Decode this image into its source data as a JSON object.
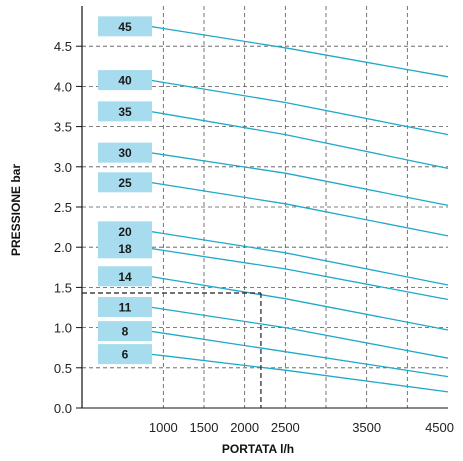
{
  "chart_data": {
    "type": "line",
    "title": "",
    "xlabel": "PORTATA l/h",
    "ylabel": "PRESSIONE bar",
    "xlim": [
      0,
      4500
    ],
    "ylim": [
      0,
      5.0
    ],
    "x_ticks": [
      "1000",
      "1500",
      "2000",
      "2500",
      "3500",
      "4500"
    ],
    "x_tick_values": [
      1000,
      1500,
      2000,
      2500,
      3500,
      4500
    ],
    "x_gridlines": [
      1000,
      1500,
      2000,
      2500,
      3000,
      3500,
      4000
    ],
    "y_ticks": [
      "0.0",
      "0.5",
      "1.0",
      "1.5",
      "2.0",
      "2.5",
      "3.0",
      "3.5",
      "4.0",
      "4.5"
    ],
    "y_tick_values": [
      0,
      0.5,
      1.0,
      1.5,
      2.0,
      2.5,
      3.0,
      3.5,
      4.0,
      4.5
    ],
    "grid": true,
    "series": [
      {
        "name": "45",
        "x": [
          1000,
          2500,
          4500
        ],
        "y": [
          4.72,
          4.48,
          4.12
        ]
      },
      {
        "name": "40",
        "x": [
          1000,
          2500,
          4500
        ],
        "y": [
          4.05,
          3.8,
          3.4
        ]
      },
      {
        "name": "35",
        "x": [
          1000,
          2500,
          4500
        ],
        "y": [
          3.66,
          3.4,
          2.98
        ]
      },
      {
        "name": "30",
        "x": [
          1000,
          2500,
          4500
        ],
        "y": [
          3.15,
          2.92,
          2.52
        ]
      },
      {
        "name": "25",
        "x": [
          1000,
          2500,
          4500
        ],
        "y": [
          2.78,
          2.54,
          2.14
        ]
      },
      {
        "name": "20",
        "x": [
          1000,
          2500,
          4500
        ],
        "y": [
          2.17,
          1.93,
          1.53
        ]
      },
      {
        "name": "18",
        "x": [
          1000,
          2500,
          4500
        ],
        "y": [
          1.96,
          1.73,
          1.35
        ]
      },
      {
        "name": "14",
        "x": [
          1000,
          2500,
          4500
        ],
        "y": [
          1.61,
          1.36,
          0.97
        ]
      },
      {
        "name": "11",
        "x": [
          1000,
          2500,
          4500
        ],
        "y": [
          1.23,
          1.0,
          0.62
        ]
      },
      {
        "name": "8",
        "x": [
          1000,
          2500,
          4500
        ],
        "y": [
          0.93,
          0.7,
          0.39
        ]
      },
      {
        "name": "6",
        "x": [
          1000,
          2500,
          4500
        ],
        "y": [
          0.65,
          0.47,
          0.2
        ]
      }
    ],
    "reference_point": {
      "x": 2200,
      "y": 1.43
    },
    "colors": {
      "line": "#1fa9c9",
      "badge": "#a6dcee",
      "grid": "#555555",
      "reference": "#222222"
    }
  }
}
